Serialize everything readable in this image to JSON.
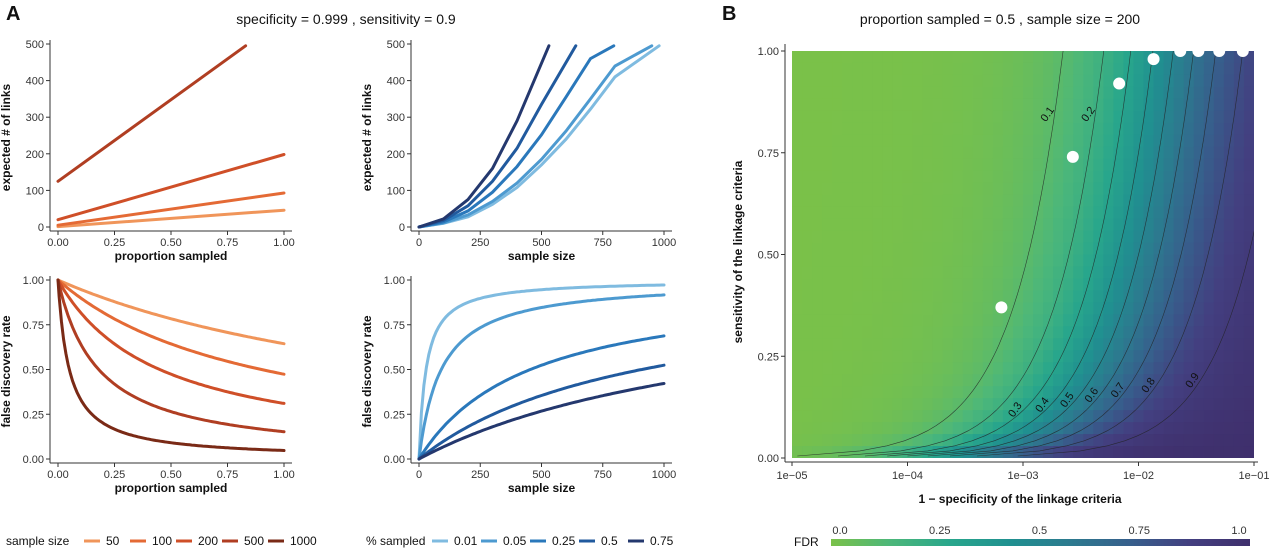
{
  "panel_a": {
    "letter": "A",
    "header": "specificity =  0.999 , sensitivity =  0.9"
  },
  "panel_b": {
    "letter": "B",
    "header": "proportion sampled =  0.5 , sample size =  200"
  },
  "legend_sample_size": {
    "title": "sample size",
    "items": [
      "50",
      "100",
      "200",
      "500",
      "1000"
    ],
    "colors": [
      "#f0955a",
      "#e46a35",
      "#cf4f28",
      "#b03e22",
      "#7a2a16"
    ]
  },
  "legend_sampled": {
    "title": "% sampled",
    "items": [
      "0.01",
      "0.05",
      "0.25",
      "0.5",
      "0.75"
    ],
    "colors": [
      "#7fbbe0",
      "#4d9ad0",
      "#2a78bb",
      "#215a9e",
      "#24386e"
    ]
  },
  "chart_data": [
    {
      "id": "a1",
      "type": "line",
      "xlabel": "proportion sampled",
      "ylabel": "expected # of links",
      "xlim": [
        0,
        1
      ],
      "ylim": [
        0,
        500
      ],
      "xticks": [
        "0.00",
        "0.25",
        "0.50",
        "0.75",
        "1.00"
      ],
      "yticks": [
        "0",
        "100",
        "200",
        "300",
        "400",
        "500"
      ],
      "series": [
        {
          "name": "50",
          "points": [
            [
              0,
              1.2
            ],
            [
              1,
              46
            ]
          ]
        },
        {
          "name": "100",
          "points": [
            [
              0,
              5
            ],
            [
              1,
              93
            ]
          ]
        },
        {
          "name": "200",
          "points": [
            [
              0,
              20
            ],
            [
              1,
              198
            ]
          ]
        },
        {
          "name": "500",
          "points": [
            [
              0,
              125
            ],
            [
              0.83,
              495
            ]
          ]
        }
      ]
    },
    {
      "id": "a2",
      "type": "line",
      "xlabel": "sample size",
      "ylabel": "expected # of links",
      "xlim": [
        0,
        1000
      ],
      "ylim": [
        0,
        500
      ],
      "xticks": [
        "0",
        "250",
        "500",
        "750",
        "1000"
      ],
      "yticks": [
        "0",
        "100",
        "200",
        "300",
        "400",
        "500"
      ],
      "series": [
        {
          "name": "0.01",
          "points": [
            [
              0,
              0
            ],
            [
              100,
              10
            ],
            [
              200,
              28
            ],
            [
              300,
              62
            ],
            [
              400,
              108
            ],
            [
              500,
              170
            ],
            [
              600,
              240
            ],
            [
              700,
              322
            ],
            [
              800,
              410
            ],
            [
              980,
              495
            ]
          ]
        },
        {
          "name": "0.05",
          "points": [
            [
              0,
              0
            ],
            [
              100,
              11
            ],
            [
              200,
              33
            ],
            [
              300,
              70
            ],
            [
              400,
              120
            ],
            [
              500,
              185
            ],
            [
              600,
              262
            ],
            [
              700,
              350
            ],
            [
              800,
              440
            ],
            [
              950,
              495
            ]
          ]
        },
        {
          "name": "0.25",
          "points": [
            [
              0,
              0
            ],
            [
              100,
              14
            ],
            [
              200,
              44
            ],
            [
              300,
              95
            ],
            [
              400,
              165
            ],
            [
              500,
              252
            ],
            [
              600,
              355
            ],
            [
              700,
              460
            ],
            [
              795,
              495
            ]
          ]
        },
        {
          "name": "0.5",
          "points": [
            [
              0,
              0
            ],
            [
              100,
              18
            ],
            [
              200,
              58
            ],
            [
              300,
              125
            ],
            [
              400,
              215
            ],
            [
              500,
              335
            ],
            [
              640,
              495
            ]
          ]
        },
        {
          "name": "0.75",
          "points": [
            [
              0,
              0
            ],
            [
              100,
              22
            ],
            [
              200,
              75
            ],
            [
              300,
              160
            ],
            [
              400,
              290
            ],
            [
              530,
              495
            ]
          ]
        }
      ]
    },
    {
      "id": "a3",
      "type": "line",
      "xlabel": "proportion sampled",
      "ylabel": "false discovery rate",
      "xlim": [
        0,
        1
      ],
      "ylim": [
        0,
        1
      ],
      "xticks": [
        "0.00",
        "0.25",
        "0.50",
        "0.75",
        "1.00"
      ],
      "yticks": [
        "0.00",
        "0.25",
        "0.50",
        "0.75",
        "1.00"
      ],
      "series": [
        {
          "name": "50",
          "k": 181
        },
        {
          "name": "100",
          "k": 90
        },
        {
          "name": "200",
          "k": 45
        },
        {
          "name": "500",
          "k": 18
        },
        {
          "name": "1000",
          "k": 5
        }
      ]
    },
    {
      "id": "a4",
      "type": "line",
      "xlabel": "sample size",
      "ylabel": "false discovery rate",
      "xlim": [
        0,
        1000
      ],
      "ylim": [
        0,
        1
      ],
      "xticks": [
        "0",
        "250",
        "500",
        "750",
        "1000"
      ],
      "yticks": [
        "0.00",
        "0.25",
        "0.50",
        "0.75",
        "1.00"
      ],
      "series": [
        {
          "name": "0.01",
          "k": 0.035
        },
        {
          "name": "0.05",
          "k": 0.011
        },
        {
          "name": "0.25",
          "k": 0.0022
        },
        {
          "name": "0.5",
          "k": 0.0011
        },
        {
          "name": "0.75",
          "k": 0.00073
        }
      ]
    },
    {
      "id": "b",
      "type": "heatmap",
      "xlabel": "1 − specificity of the linkage criteria",
      "ylabel": "sensitivity of the linkage criteria",
      "x_scale": "log",
      "xlim": [
        1e-05,
        0.1
      ],
      "ylim": [
        0,
        1
      ],
      "xticks": [
        "1e−05",
        "1e−04",
        "1e−03",
        "1e−02",
        "1e−01"
      ],
      "yticks": [
        "0.00",
        "0.25",
        "0.50",
        "0.75",
        "1.00"
      ],
      "fdr_constant": 50,
      "contours": [
        "0.1",
        "0.2",
        "0.3",
        "0.4",
        "0.5",
        "0.6",
        "0.7",
        "0.8",
        "0.9"
      ],
      "points": [
        [
          0.00065,
          0.37
        ],
        [
          0.0027,
          0.74
        ],
        [
          0.0068,
          0.92
        ],
        [
          0.0135,
          0.98
        ],
        [
          0.023,
          1.0
        ],
        [
          0.033,
          1.0
        ],
        [
          0.05,
          1.0
        ],
        [
          0.08,
          1.0
        ]
      ],
      "colorbar": {
        "title": "FDR",
        "ticks": [
          "0.0",
          "0.25",
          "0.5",
          "0.75",
          "1.0"
        ]
      }
    }
  ]
}
